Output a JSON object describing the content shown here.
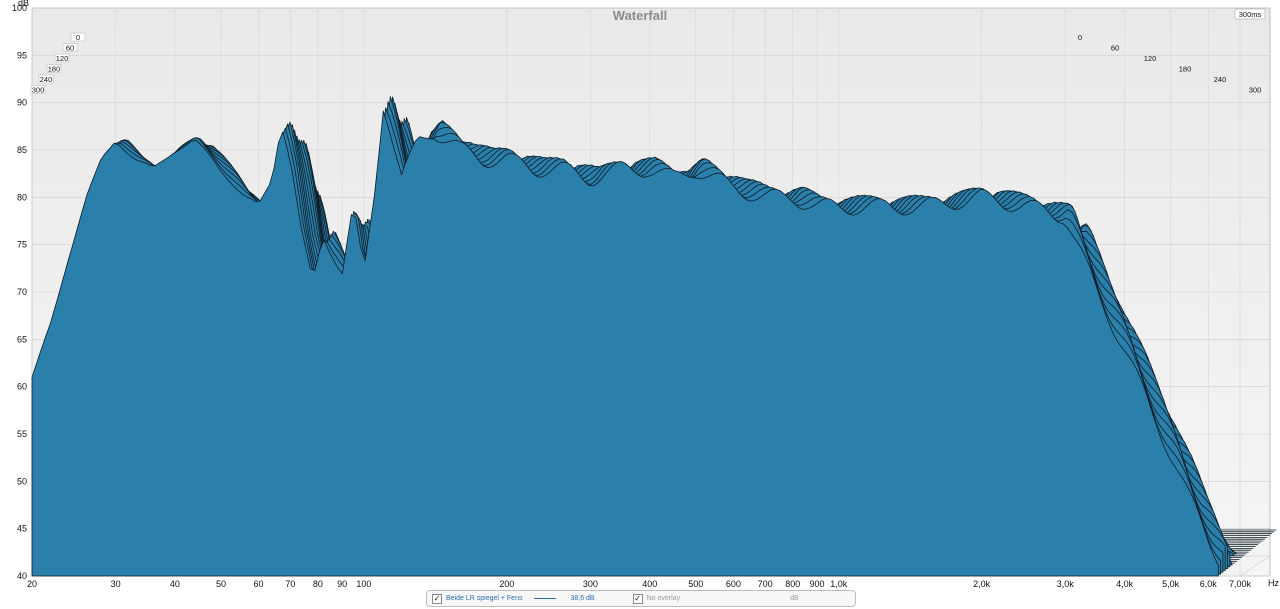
{
  "chart_data": {
    "type": "area",
    "title": "Waterfall",
    "ylabel": "dB",
    "xlabel": "Hz",
    "x_scale": "log",
    "xlim": [
      20,
      7000
    ],
    "ylim": [
      40,
      100
    ],
    "y_ticks": [
      "40",
      "45",
      "50",
      "55",
      "60",
      "65",
      "70",
      "75",
      "80",
      "85",
      "90",
      "95",
      "100"
    ],
    "x_ticks": [
      {
        "v": 20,
        "label": "20"
      },
      {
        "v": 30,
        "label": "30"
      },
      {
        "v": 40,
        "label": "40"
      },
      {
        "v": 50,
        "label": "50"
      },
      {
        "v": 60,
        "label": "60"
      },
      {
        "v": 70,
        "label": "70"
      },
      {
        "v": 80,
        "label": "80"
      },
      {
        "v": 90,
        "label": "90"
      },
      {
        "v": 100,
        "label": "100"
      },
      {
        "v": 200,
        "label": "200"
      },
      {
        "v": 300,
        "label": "300"
      },
      {
        "v": 400,
        "label": "400"
      },
      {
        "v": 500,
        "label": "500"
      },
      {
        "v": 600,
        "label": "600"
      },
      {
        "v": 700,
        "label": "700"
      },
      {
        "v": 800,
        "label": "800"
      },
      {
        "v": 900,
        "label": "900"
      },
      {
        "v": 1000,
        "label": "1,0k"
      },
      {
        "v": 2000,
        "label": "2,0k"
      },
      {
        "v": 3000,
        "label": "3,0k"
      },
      {
        "v": 4000,
        "label": "4,0k"
      },
      {
        "v": 5000,
        "label": "5,0k"
      },
      {
        "v": 6000,
        "label": "6,0k"
      },
      {
        "v": 7000,
        "label": "7,00k"
      }
    ],
    "time_axis_label": "300ms",
    "time_ticks": [
      "0",
      "60",
      "120",
      "180",
      "240",
      "300"
    ],
    "fill_color": "#2b7fab",
    "line_color": "#0d1b24",
    "base_response": {
      "x": [
        20,
        22,
        24,
        26,
        28,
        30,
        33,
        36,
        40,
        44,
        48,
        52,
        56,
        60,
        64,
        67,
        70,
        74,
        78,
        82,
        86,
        90,
        95,
        100,
        105,
        110,
        115,
        120,
        130,
        140,
        150,
        160,
        180,
        200,
        230,
        260,
        300,
        350,
        400,
        450,
        500,
        600,
        700,
        800,
        900,
        1000,
        1200,
        1500,
        2000,
        2500,
        3000,
        3500,
        4000,
        4500,
        5000,
        5500,
        6000,
        6300
      ],
      "y": [
        61,
        67,
        74,
        80,
        84,
        86,
        84,
        83,
        85,
        86,
        84,
        82,
        80,
        79,
        82,
        88,
        84,
        76,
        71,
        76,
        74,
        72,
        79,
        72,
        80,
        90,
        86,
        82,
        86,
        87,
        86,
        85,
        84,
        84,
        83,
        83,
        82,
        83,
        83,
        82,
        83,
        81,
        80,
        80,
        79,
        79,
        79,
        79,
        80,
        79,
        78,
        70,
        64,
        58,
        53,
        48,
        44,
        42
      ]
    }
  },
  "legend": {
    "series_name": "Beide  LR spiegel + Fens",
    "series_value": "38,6 dB",
    "overlay": "No overlay",
    "unit": "dB"
  }
}
